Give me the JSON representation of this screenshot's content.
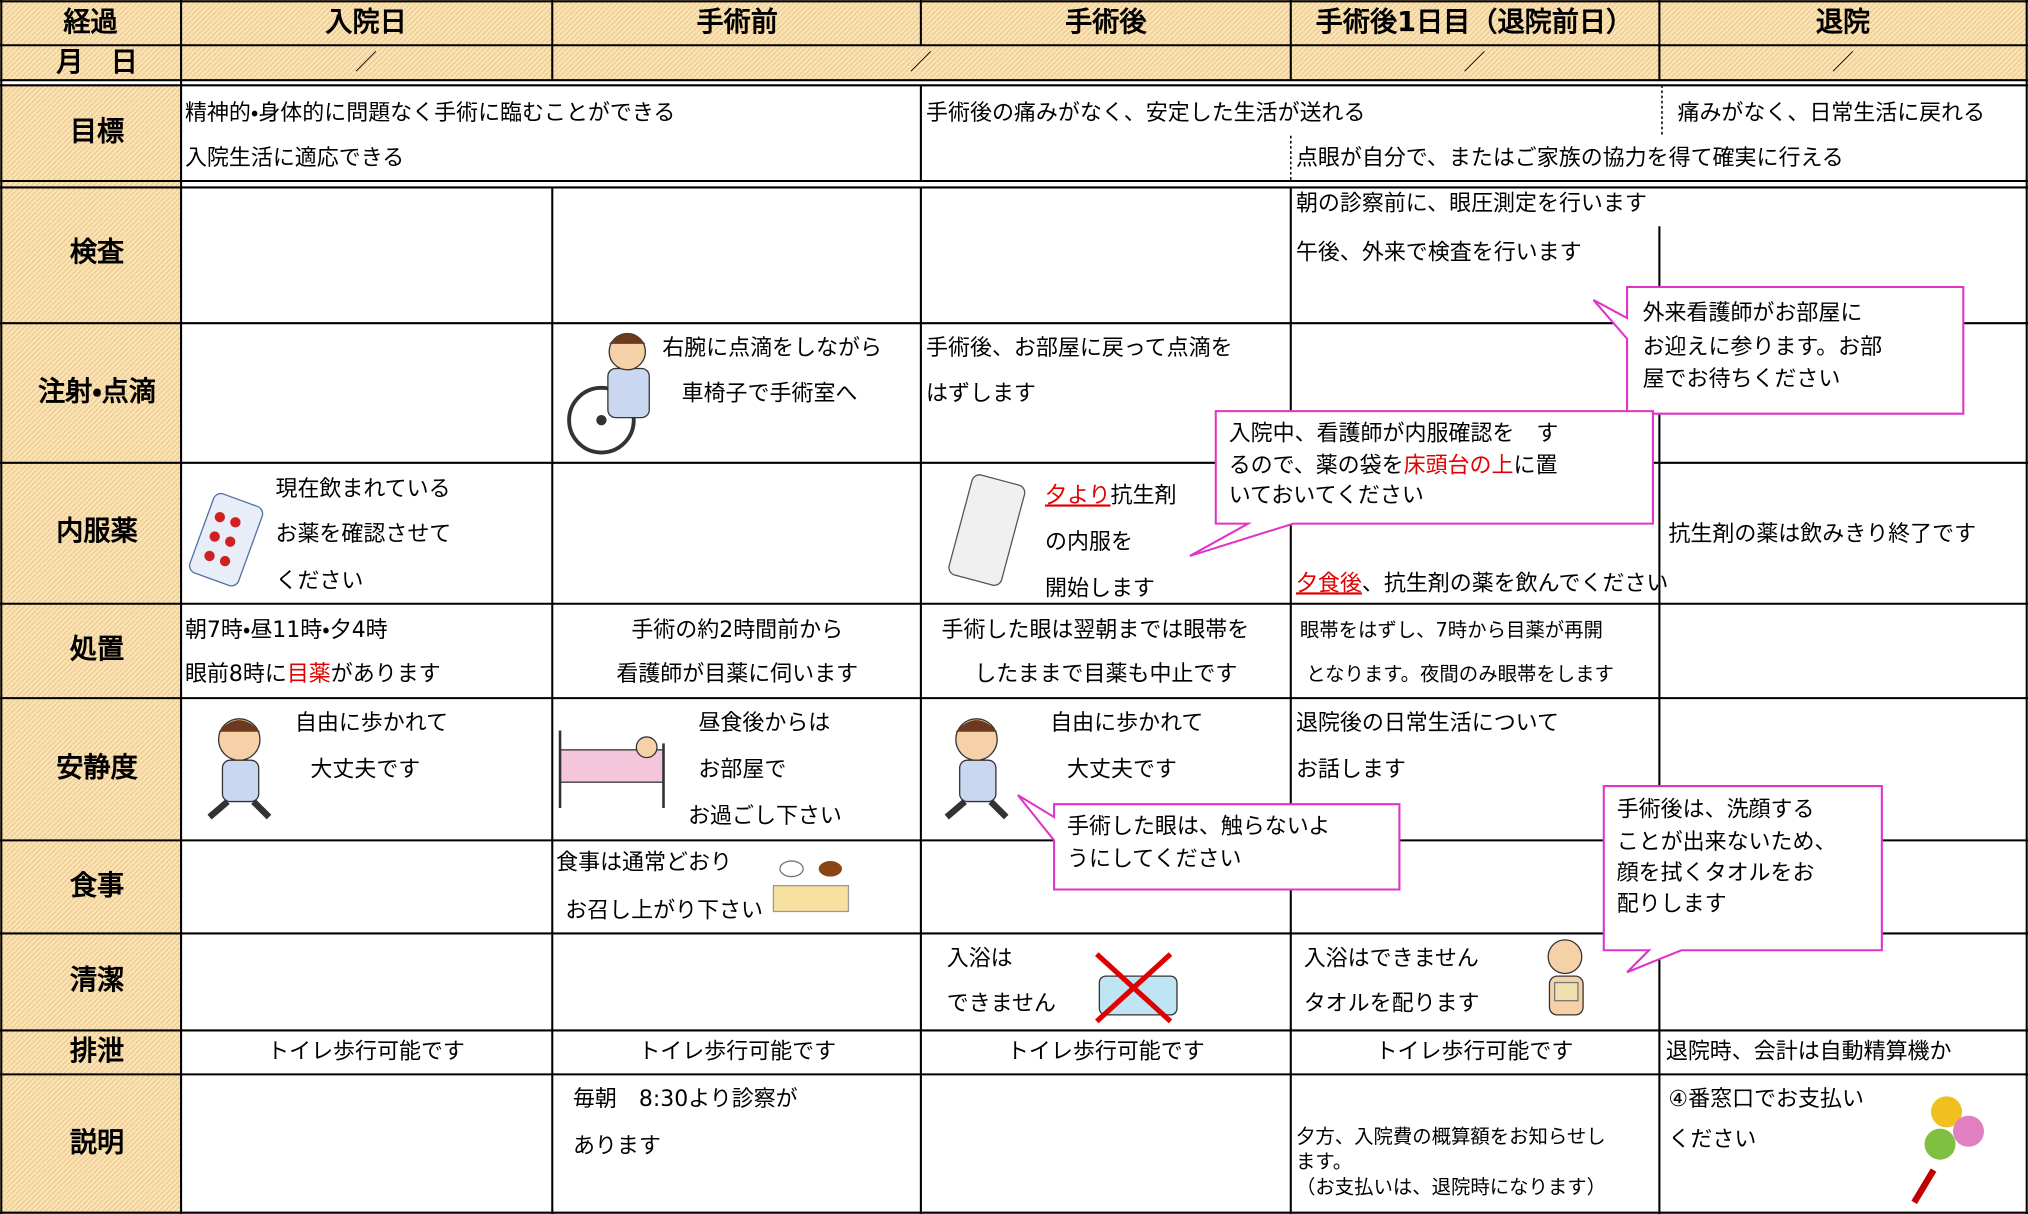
{
  "header": {
    "columns": [
      "経過",
      "入院日",
      "手術前",
      "手術後",
      "手術後1日目（退院前日）",
      "退院"
    ]
  },
  "date_row": {
    "label": "月　日",
    "cells": [
      "／",
      "／",
      "／",
      "／"
    ]
  },
  "rows": [
    {
      "label": "目標",
      "texts": [
        "精神的・身体的に問題なく手術に臨むことができる",
        "入院生活に適応できる",
        "手術後の痛みがなく、安定した生活が送れる",
        "痛みがなく、日常生活に戻れる",
        "点眼が自分で、またはご家族の協力を得て確実に行える"
      ]
    },
    {
      "label": "検査",
      "texts": [
        "朝の診察前に、眼圧測定を行います",
        "午後、外来で検査を行います"
      ]
    },
    {
      "label": "注射・点滴",
      "texts": [
        "右腕に点滴をしながら",
        "車椅子で手術室へ",
        "手術後、お部屋に戻って点滴を",
        "はずします"
      ]
    },
    {
      "label": "内服薬",
      "texts": [
        "現在飲まれている",
        "お薬を確認させて",
        "ください",
        [
          "夕より",
          "抗生剤"
        ],
        "の内服を",
        "開始します",
        [
          "夕食後",
          "、抗生剤の薬を飲んでください"
        ],
        "抗生剤の薬は飲みきり終了です"
      ]
    },
    {
      "label": "処置",
      "texts": [
        "朝7時・昼11時・夕4時",
        [
          "眼前8時に",
          "目薬",
          "があります"
        ],
        "手術の約2時間前から",
        "看護師が目薬に伺います",
        "手術した眼は翌朝までは眼帯を",
        "したままで目薬も中止です",
        "眼帯をはずし、7時から目薬が再開",
        "となります。夜間のみ眼帯をします"
      ]
    },
    {
      "label": "安静度",
      "texts": [
        "自由に歩かれて",
        "大丈夫です",
        "昼食後からは",
        "お部屋で",
        "お過ごし下さい",
        "自由に歩かれて",
        "大丈夫です",
        "退院後の日常生活について",
        "お話します"
      ]
    },
    {
      "label": "食事",
      "texts": [
        "食事は通常どおり",
        "お召し上がり下さい"
      ]
    },
    {
      "label": "清潔",
      "texts": [
        "入浴は",
        "できません",
        "入浴はできません",
        "タオルを配ります"
      ]
    },
    {
      "label": "排泄",
      "texts": [
        "トイレ歩行可能です",
        "トイレ歩行可能です",
        "トイレ歩行可能です",
        "トイレ歩行可能です",
        "退院時、会計は自動精算機か"
      ]
    },
    {
      "label": "説明",
      "texts": [
        "毎朝　8:30より診察が",
        "あります",
        "夕方、入院費の概算額をお知らせし",
        "ます。",
        "（お支払いは、退院時になります）",
        "④番窓口でお支払い",
        "ください"
      ]
    }
  ],
  "callouts": [
    {
      "lines": [
        "外来看護師がお部屋に",
        "お迎えに参ります。お部",
        "屋でお待ちください"
      ]
    },
    {
      "lines": [
        "入院中、看護師が内服確認を　す",
        [
          "るので、薬の袋を",
          "床頭台の上",
          "に置"
        ],
        "いておいてください"
      ]
    },
    {
      "lines": [
        "手術した眼は、触らないよ",
        "うにしてください"
      ]
    },
    {
      "lines": [
        "手術後は、洗顔する",
        "ことが出来ないため、",
        "顔を拭くタオルをお",
        "配りします"
      ]
    }
  ]
}
